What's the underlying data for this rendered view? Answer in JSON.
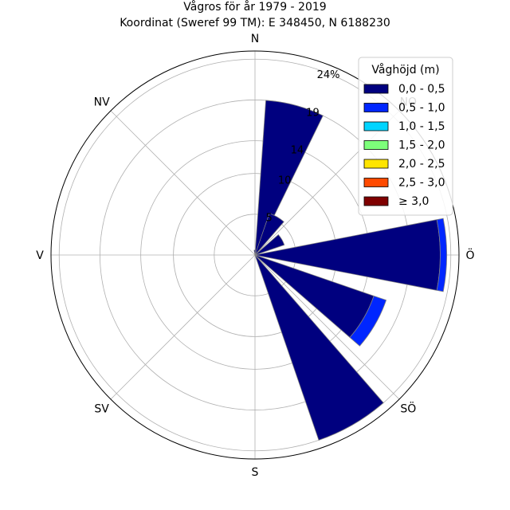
{
  "chart_data": {
    "type": "windrose",
    "title": [
      "Vågros för år 1979 - 2019",
      "Koordinat (Sweref 99 TM): E 348450, N 6188230"
    ],
    "direction_labels": [
      "N",
      "NO",
      "Ö",
      "SÖ",
      "S",
      "SV",
      "V",
      "NV"
    ],
    "radial_ticks": [
      "5",
      "10",
      "14",
      "19",
      "24%"
    ],
    "radial_tick_values": [
      5,
      10,
      14,
      19,
      24
    ],
    "rmax": 25,
    "grid": true,
    "legend": {
      "title": "Våghöjd (m)",
      "placement": "top-right",
      "entries": [
        "0,0 - 0,5",
        "0,5 - 1,0",
        "1,0 - 1,5",
        "1,5 - 2,0",
        "2,0 - 2,5",
        "2,5 - 3,0",
        "≥ 3,0"
      ],
      "colors": [
        "#00007f",
        "#0026ff",
        "#00d4ff",
        "#7dff7a",
        "#ffe500",
        "#ff4a00",
        "#7f0000"
      ]
    },
    "sectors": [
      {
        "direction_deg": 0,
        "values": [
          0.6
        ]
      },
      {
        "direction_deg": 15,
        "values": [
          19.0
        ]
      },
      {
        "direction_deg": 30,
        "values": [
          5.4
        ]
      },
      {
        "direction_deg": 60,
        "values": [
          3.8
        ]
      },
      {
        "direction_deg": 90,
        "values": [
          22.7,
          0.8
        ]
      },
      {
        "direction_deg": 120,
        "values": [
          15.4,
          1.6
        ]
      },
      {
        "direction_deg": 150,
        "values": [
          24.0
        ]
      }
    ]
  }
}
